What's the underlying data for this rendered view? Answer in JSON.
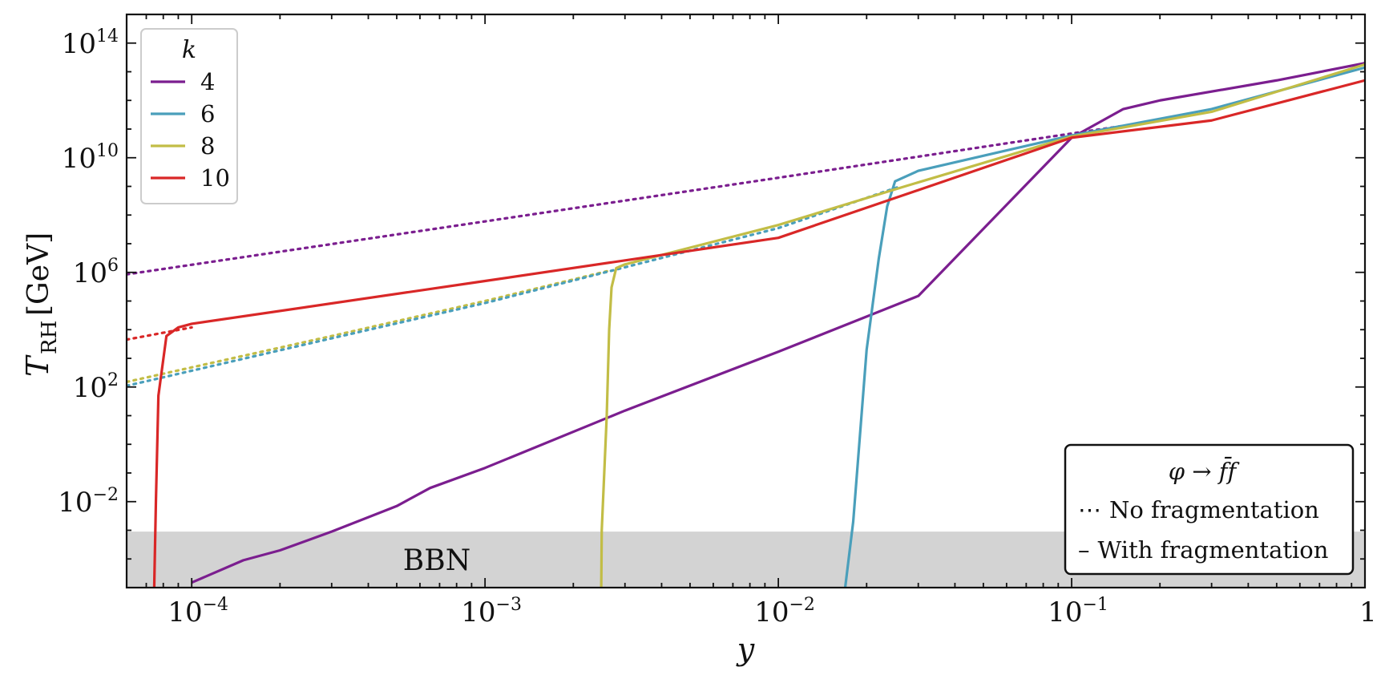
{
  "chart_data": {
    "type": "line",
    "xlabel": "y",
    "ylabel": "T_RH [GeV]",
    "ylabel_main": "T",
    "ylabel_sub": "RH",
    "ylabel_unit": "[GeV]",
    "xscale": "log",
    "yscale": "log",
    "xlim": [
      6e-05,
      1
    ],
    "ylim": [
      1e-05,
      1000000000000000.0
    ],
    "x_ticks": [
      {
        "value": 0.0001,
        "base": "10",
        "exp": "−4"
      },
      {
        "value": 0.001,
        "base": "10",
        "exp": "−3"
      },
      {
        "value": 0.01,
        "base": "10",
        "exp": "−2"
      },
      {
        "value": 0.1,
        "base": "10",
        "exp": "−1"
      },
      {
        "value": 1,
        "base": "1",
        "exp": ""
      }
    ],
    "y_ticks": [
      {
        "value": 0.01,
        "base": "10",
        "exp": "−2"
      },
      {
        "value": 100,
        "base": "10",
        "exp": "2"
      },
      {
        "value": 1000000,
        "base": "10",
        "exp": "6"
      },
      {
        "value": 10000000000,
        "base": "10",
        "exp": "10"
      },
      {
        "value": 100000000000000,
        "base": "10",
        "exp": "14"
      }
    ],
    "bbn_region": {
      "label": "BBN",
      "y_max": 0.0009,
      "color": "#d3d3d3"
    },
    "legend_k": {
      "title": "k",
      "placement": "top-left",
      "entries": [
        {
          "label": "4",
          "color": "#7b1e8f"
        },
        {
          "label": "6",
          "color": "#4a9fbb"
        },
        {
          "label": "8",
          "color": "#c2bd46"
        },
        {
          "label": "10",
          "color": "#d92727"
        }
      ]
    },
    "legend_style": {
      "title": "φ → f̄f",
      "placement": "bottom-right",
      "entries": [
        {
          "marker": "⋯",
          "label": "No fragmentation"
        },
        {
          "marker": "–",
          "label": "With fragmentation"
        }
      ]
    },
    "series": [
      {
        "key": "k4-nofrag",
        "k": "4",
        "style": "dotted",
        "color": "#7b1e8f",
        "points": [
          [
            6e-05,
            850000
          ],
          [
            0.001,
            60000000
          ],
          [
            0.01,
            2000000000
          ],
          [
            0.1,
            70000000000
          ],
          [
            0.2,
            200000000000
          ]
        ]
      },
      {
        "key": "k10-nofrag",
        "k": "10",
        "style": "dotted",
        "color": "#d92727",
        "points": [
          [
            6e-05,
            4500
          ],
          [
            0.0001,
            12000
          ]
        ]
      },
      {
        "key": "k8-nofrag",
        "k": "8",
        "style": "dotted",
        "color": "#c2bd46",
        "points": [
          [
            6e-05,
            150
          ],
          [
            0.0003,
            6000
          ],
          [
            0.001,
            100000
          ],
          [
            0.0027,
            1200000
          ]
        ]
      },
      {
        "key": "k6-nofrag",
        "k": "6",
        "style": "dotted",
        "color": "#4a9fbb",
        "points": [
          [
            6e-05,
            110
          ],
          [
            0.0003,
            5000
          ],
          [
            0.001,
            85000
          ],
          [
            0.01,
            35000000
          ],
          [
            0.026,
            1000000000
          ]
        ]
      },
      {
        "key": "k4-frag",
        "k": "4",
        "style": "solid",
        "color": "#7b1e8f",
        "points": [
          [
            0.0001,
            1.5e-05
          ],
          [
            0.00015,
            9e-05
          ],
          [
            0.0002,
            0.0002
          ],
          [
            0.0003,
            0.0009
          ],
          [
            0.0005,
            0.007
          ],
          [
            0.00065,
            0.03
          ],
          [
            0.001,
            0.15
          ],
          [
            0.003,
            15
          ],
          [
            0.01,
            1700
          ],
          [
            0.03,
            150000
          ],
          [
            0.1,
            50000000000
          ],
          [
            0.15,
            500000000000
          ],
          [
            0.2,
            1000000000000
          ],
          [
            0.5,
            5000000000000
          ],
          [
            1,
            20000000000000
          ]
        ]
      },
      {
        "key": "k6-frag",
        "k": "6",
        "style": "solid",
        "color": "#4a9fbb",
        "points": [
          [
            0.0169,
            1e-05
          ],
          [
            0.018,
            0.002
          ],
          [
            0.02,
            2000
          ],
          [
            0.022,
            3000000
          ],
          [
            0.0235,
            200000000
          ],
          [
            0.025,
            1500000000
          ],
          [
            0.03,
            3500000000
          ],
          [
            0.1,
            60000000000
          ],
          [
            0.3,
            500000000000
          ],
          [
            1,
            14000000000000
          ]
        ]
      },
      {
        "key": "k8-frag",
        "k": "8",
        "style": "solid",
        "color": "#c2bd46",
        "points": [
          [
            0.00249,
            1e-05
          ],
          [
            0.0025,
            0.001
          ],
          [
            0.0026,
            10
          ],
          [
            0.00265,
            10000
          ],
          [
            0.0027,
            300000
          ],
          [
            0.0028,
            1400000
          ],
          [
            0.003,
            1900000
          ],
          [
            0.01,
            45000000
          ],
          [
            0.027,
            1000000000
          ],
          [
            0.1,
            55000000000
          ],
          [
            0.3,
            400000000000
          ],
          [
            1,
            18000000000000
          ]
        ]
      },
      {
        "key": "k10-frag",
        "k": "10",
        "style": "solid",
        "color": "#d92727",
        "points": [
          [
            7.45e-05,
            1e-05
          ],
          [
            7.55e-05,
            0.01
          ],
          [
            7.7e-05,
            50
          ],
          [
            8.2e-05,
            6000
          ],
          [
            9e-05,
            12000
          ],
          [
            0.0001,
            16000
          ],
          [
            0.001,
            500000
          ],
          [
            0.01,
            16000000
          ],
          [
            0.1,
            50000000000
          ],
          [
            0.3,
            200000000000
          ],
          [
            1,
            5000000000000
          ]
        ]
      }
    ]
  }
}
